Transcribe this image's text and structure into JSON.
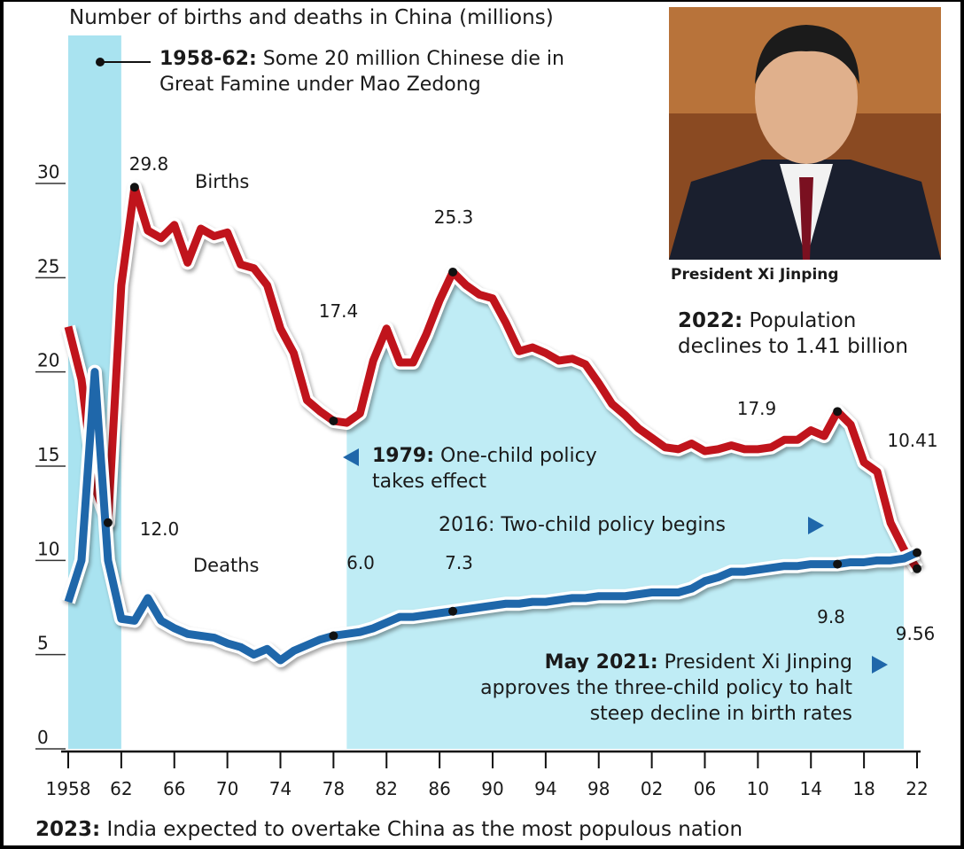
{
  "chart_data": {
    "type": "line",
    "title": "Number of births and deaths in China (millions)",
    "x": [
      1958,
      1959,
      1960,
      1961,
      1962,
      1963,
      1964,
      1965,
      1966,
      1967,
      1968,
      1969,
      1970,
      1971,
      1972,
      1973,
      1974,
      1975,
      1976,
      1977,
      1978,
      1979,
      1980,
      1981,
      1982,
      1983,
      1984,
      1985,
      1986,
      1987,
      1988,
      1989,
      1990,
      1991,
      1992,
      1993,
      1994,
      1995,
      1996,
      1997,
      1998,
      1999,
      2000,
      2001,
      2002,
      2003,
      2004,
      2005,
      2006,
      2007,
      2008,
      2009,
      2010,
      2011,
      2012,
      2013,
      2014,
      2015,
      2016,
      2017,
      2018,
      2019,
      2020,
      2021,
      2022
    ],
    "series": [
      {
        "name": "Births",
        "color": "#c0141c",
        "values": [
          22.4,
          19.6,
          13.9,
          12.0,
          24.6,
          29.8,
          27.5,
          27.1,
          27.8,
          25.8,
          27.6,
          27.2,
          27.4,
          25.7,
          25.5,
          24.6,
          22.3,
          21.0,
          18.5,
          17.9,
          17.4,
          17.3,
          17.8,
          20.6,
          22.3,
          20.5,
          20.5,
          22.0,
          23.8,
          25.3,
          24.6,
          24.1,
          23.9,
          22.6,
          21.1,
          21.3,
          21.0,
          20.6,
          20.7,
          20.4,
          19.4,
          18.3,
          17.7,
          17.0,
          16.5,
          16.0,
          15.9,
          16.2,
          15.8,
          15.9,
          16.1,
          15.9,
          15.9,
          16.0,
          16.4,
          16.4,
          16.9,
          16.6,
          17.9,
          17.2,
          15.2,
          14.7,
          12.0,
          10.6,
          9.56
        ],
        "value_labels": [
          null,
          null,
          null,
          "12.0",
          null,
          "29.8",
          null,
          null,
          null,
          null,
          null,
          null,
          null,
          null,
          null,
          null,
          null,
          null,
          null,
          null,
          "17.4",
          null,
          null,
          null,
          null,
          null,
          null,
          null,
          null,
          "25.3",
          null,
          null,
          null,
          null,
          null,
          null,
          null,
          null,
          null,
          null,
          null,
          null,
          null,
          null,
          null,
          null,
          null,
          null,
          null,
          null,
          null,
          null,
          null,
          null,
          null,
          null,
          null,
          null,
          "17.9",
          null,
          null,
          null,
          null,
          null,
          "9.56"
        ]
      },
      {
        "name": "Deaths",
        "color": "#1f67aa",
        "values": [
          7.8,
          10.0,
          20.0,
          10.0,
          6.9,
          6.8,
          8.0,
          6.8,
          6.4,
          6.1,
          6.0,
          5.9,
          5.6,
          5.4,
          5.0,
          5.3,
          4.7,
          5.2,
          5.5,
          5.8,
          6.0,
          6.1,
          6.2,
          6.4,
          6.7,
          7.0,
          7.0,
          7.1,
          7.2,
          7.3,
          7.4,
          7.5,
          7.6,
          7.7,
          7.7,
          7.8,
          7.8,
          7.9,
          8.0,
          8.0,
          8.1,
          8.1,
          8.1,
          8.2,
          8.3,
          8.3,
          8.3,
          8.5,
          8.9,
          9.1,
          9.4,
          9.4,
          9.5,
          9.6,
          9.7,
          9.7,
          9.8,
          9.8,
          9.8,
          9.9,
          9.9,
          10.0,
          10.0,
          10.1,
          10.41
        ],
        "value_labels": [
          null,
          null,
          null,
          null,
          null,
          null,
          null,
          null,
          null,
          null,
          null,
          null,
          null,
          null,
          null,
          null,
          null,
          null,
          null,
          null,
          "6.0",
          null,
          null,
          null,
          null,
          null,
          null,
          null,
          null,
          "7.3",
          null,
          null,
          null,
          null,
          null,
          null,
          null,
          null,
          null,
          null,
          null,
          null,
          null,
          null,
          null,
          null,
          null,
          null,
          null,
          null,
          null,
          null,
          null,
          null,
          null,
          null,
          null,
          null,
          "9.8",
          null,
          null,
          null,
          null,
          null,
          "10.41"
        ]
      }
    ],
    "xlim": [
      1958,
      2022
    ],
    "xticks": [
      1958,
      {
        "value": 1962,
        "label": "62"
      },
      {
        "value": 1966,
        "label": "66"
      },
      {
        "value": 1970,
        "label": "70"
      },
      {
        "value": 1974,
        "label": "74"
      },
      {
        "value": 1978,
        "label": "78"
      },
      {
        "value": 1982,
        "label": "82"
      },
      {
        "value": 1986,
        "label": "86"
      },
      {
        "value": 1990,
        "label": "90"
      },
      {
        "value": 1994,
        "label": "94"
      },
      {
        "value": 1998,
        "label": "98"
      },
      {
        "value": 2002,
        "label": "02"
      },
      {
        "value": 2006,
        "label": "06"
      },
      {
        "value": 2010,
        "label": "10"
      },
      {
        "value": 2014,
        "label": "14"
      },
      {
        "value": 2018,
        "label": "18"
      },
      {
        "value": 2022,
        "label": "22"
      }
    ],
    "ylim": [
      0,
      30
    ],
    "yticks": [
      0,
      5,
      10,
      15,
      20,
      25,
      30
    ],
    "highlight": [
      {
        "from": 1958,
        "to": 1962
      },
      {
        "from": 1979,
        "to": 2021
      }
    ],
    "annotations": [
      {
        "bold": "1958-62:",
        "text": "Some 20 million Chinese die in Great Famine under Mao Zedong"
      },
      {
        "bold": "2022:",
        "text": "Population declines to 1.41 billion"
      },
      {
        "bold": "1979:",
        "text": "One-child policy takes effect"
      },
      {
        "text": "2016: Two-child policy begins"
      },
      {
        "bold": "May 2021:",
        "text": "President Xi Jinping approves the three-child policy to halt steep decline in birth rates"
      }
    ],
    "image_caption": "President Xi Jinping",
    "footnote": {
      "bold": "2023:",
      "text": "India expected to overtake China as the most populous nation"
    }
  }
}
